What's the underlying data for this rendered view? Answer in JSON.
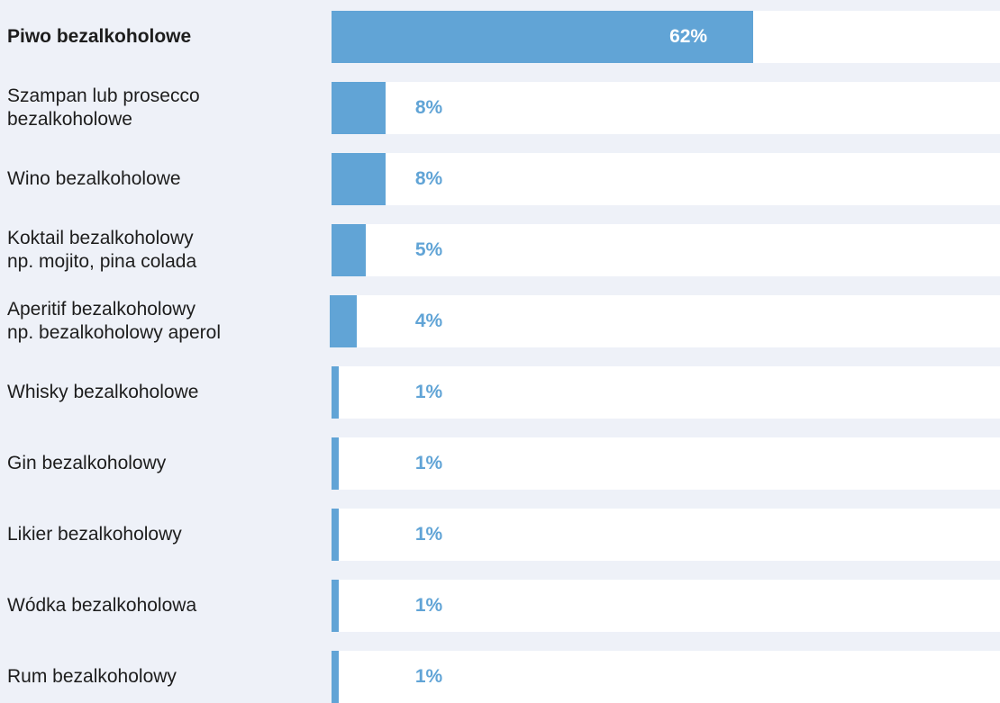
{
  "chart_data": {
    "type": "bar",
    "orientation": "horizontal",
    "categories": [
      "Piwo bezalkoholowe",
      "Szampan lub prosecco\nbezalkoholowe",
      "Wino bezalkoholowe",
      "Koktail bezalkoholowy\nnp. mojito, pina colada",
      "Aperitif bezalkoholowy\nnp. bezalkoholowy aperol",
      "Whisky bezalkoholowe",
      "Gin bezalkoholowy",
      "Likier bezalkoholowy",
      "Wódka bezalkoholowa",
      "Rum bezalkoholowy"
    ],
    "values": [
      62,
      8,
      8,
      5,
      4,
      1,
      1,
      1,
      1,
      1
    ],
    "value_labels": [
      "62%",
      "8%",
      "8%",
      "5%",
      "4%",
      "1%",
      "1%",
      "1%",
      "1%",
      "1%"
    ],
    "highlight_index": 0,
    "xlim": [
      0,
      100
    ],
    "grid": false,
    "legend": "none",
    "colors": {
      "bar": "#61a4d6",
      "track": "#ffffff",
      "background": "#eef1f8",
      "label_inside": "#ffffff",
      "label_outside": "#61a4d6"
    }
  }
}
